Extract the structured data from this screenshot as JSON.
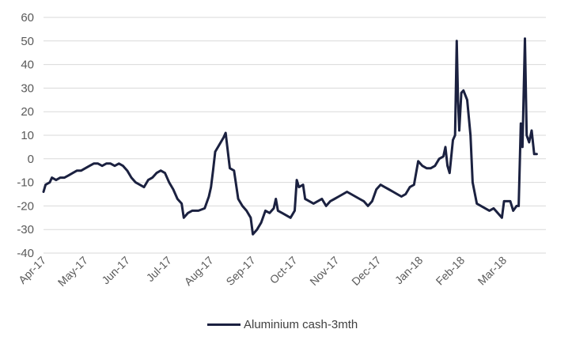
{
  "chart_data": {
    "type": "line",
    "title": "",
    "xlabel": "",
    "ylabel": "",
    "ylim": [
      -40,
      60
    ],
    "yticks": [
      "60",
      "50",
      "40",
      "30",
      "20",
      "10",
      "0",
      "-10",
      "-20",
      "-30",
      "-40"
    ],
    "xticks": [
      "Apr-17",
      "May-17",
      "Jun-17",
      "Jul-17",
      "Aug-17",
      "Sep-17",
      "Oct-17",
      "Nov-17",
      "Dec-17",
      "Jan-18",
      "Feb-18",
      "Mar-18"
    ],
    "grid": true,
    "legend_position": "bottom",
    "series": [
      {
        "name": "Aluminium cash-3mth",
        "color": "#1b2140",
        "points": [
          [
            0.0,
            -14
          ],
          [
            0.05,
            -11
          ],
          [
            0.15,
            -10
          ],
          [
            0.2,
            -8
          ],
          [
            0.3,
            -9
          ],
          [
            0.4,
            -8
          ],
          [
            0.5,
            -8
          ],
          [
            0.6,
            -7
          ],
          [
            0.7,
            -6
          ],
          [
            0.8,
            -5
          ],
          [
            0.9,
            -5
          ],
          [
            1.0,
            -4
          ],
          [
            1.1,
            -3
          ],
          [
            1.2,
            -2
          ],
          [
            1.3,
            -2
          ],
          [
            1.4,
            -3
          ],
          [
            1.5,
            -2
          ],
          [
            1.6,
            -2
          ],
          [
            1.7,
            -3
          ],
          [
            1.8,
            -2
          ],
          [
            1.9,
            -3
          ],
          [
            2.0,
            -5
          ],
          [
            2.1,
            -8
          ],
          [
            2.2,
            -10
          ],
          [
            2.3,
            -11
          ],
          [
            2.4,
            -12
          ],
          [
            2.5,
            -9
          ],
          [
            2.6,
            -8
          ],
          [
            2.7,
            -6
          ],
          [
            2.8,
            -5
          ],
          [
            2.9,
            -6
          ],
          [
            3.0,
            -10
          ],
          [
            3.1,
            -13
          ],
          [
            3.2,
            -17
          ],
          [
            3.3,
            -19
          ],
          [
            3.35,
            -25
          ],
          [
            3.45,
            -23
          ],
          [
            3.55,
            -22
          ],
          [
            3.7,
            -22
          ],
          [
            3.85,
            -21
          ],
          [
            3.95,
            -16
          ],
          [
            4.0,
            -12
          ],
          [
            4.05,
            -5
          ],
          [
            4.1,
            3
          ],
          [
            4.2,
            6
          ],
          [
            4.3,
            9
          ],
          [
            4.35,
            11
          ],
          [
            4.45,
            -4
          ],
          [
            4.55,
            -5
          ],
          [
            4.65,
            -17
          ],
          [
            4.75,
            -20
          ],
          [
            4.85,
            -22
          ],
          [
            4.95,
            -25
          ],
          [
            5.0,
            -32
          ],
          [
            5.1,
            -30
          ],
          [
            5.2,
            -27
          ],
          [
            5.3,
            -22
          ],
          [
            5.4,
            -23
          ],
          [
            5.5,
            -21
          ],
          [
            5.55,
            -17
          ],
          [
            5.6,
            -22
          ],
          [
            5.7,
            -23
          ],
          [
            5.8,
            -24
          ],
          [
            5.9,
            -25
          ],
          [
            6.0,
            -22
          ],
          [
            6.05,
            -9
          ],
          [
            6.1,
            -12
          ],
          [
            6.2,
            -11
          ],
          [
            6.25,
            -17
          ],
          [
            6.35,
            -18
          ],
          [
            6.45,
            -19
          ],
          [
            6.55,
            -18
          ],
          [
            6.65,
            -17
          ],
          [
            6.75,
            -20
          ],
          [
            6.85,
            -18
          ],
          [
            6.95,
            -17
          ],
          [
            7.05,
            -16
          ],
          [
            7.15,
            -15
          ],
          [
            7.25,
            -14
          ],
          [
            7.35,
            -15
          ],
          [
            7.45,
            -16
          ],
          [
            7.55,
            -17
          ],
          [
            7.65,
            -18
          ],
          [
            7.75,
            -20
          ],
          [
            7.85,
            -18
          ],
          [
            7.95,
            -13
          ],
          [
            8.05,
            -11
          ],
          [
            8.15,
            -12
          ],
          [
            8.25,
            -13
          ],
          [
            8.35,
            -14
          ],
          [
            8.45,
            -15
          ],
          [
            8.55,
            -16
          ],
          [
            8.65,
            -15
          ],
          [
            8.75,
            -12
          ],
          [
            8.85,
            -11
          ],
          [
            8.95,
            -1
          ],
          [
            9.05,
            -3
          ],
          [
            9.15,
            -4
          ],
          [
            9.25,
            -4
          ],
          [
            9.35,
            -3
          ],
          [
            9.45,
            0
          ],
          [
            9.55,
            1
          ],
          [
            9.6,
            5
          ],
          [
            9.65,
            -3
          ],
          [
            9.7,
            -6
          ],
          [
            9.78,
            8
          ],
          [
            9.83,
            10
          ],
          [
            9.87,
            50
          ],
          [
            9.9,
            25
          ],
          [
            9.93,
            12
          ],
          [
            9.98,
            28
          ],
          [
            10.03,
            29
          ],
          [
            10.12,
            25
          ],
          [
            10.2,
            10
          ],
          [
            10.25,
            -10
          ],
          [
            10.35,
            -19
          ],
          [
            10.45,
            -20
          ],
          [
            10.55,
            -21
          ],
          [
            10.65,
            -22
          ],
          [
            10.75,
            -21
          ],
          [
            10.85,
            -23
          ],
          [
            10.95,
            -25
          ],
          [
            11.0,
            -18
          ],
          [
            11.15,
            -18
          ],
          [
            11.22,
            -22
          ],
          [
            11.3,
            -20
          ],
          [
            11.35,
            -20
          ],
          [
            11.4,
            15
          ],
          [
            11.44,
            5
          ],
          [
            11.5,
            51
          ],
          [
            11.54,
            10
          ],
          [
            11.6,
            7
          ],
          [
            11.66,
            12
          ],
          [
            11.72,
            2
          ],
          [
            11.78,
            2
          ]
        ]
      }
    ]
  }
}
